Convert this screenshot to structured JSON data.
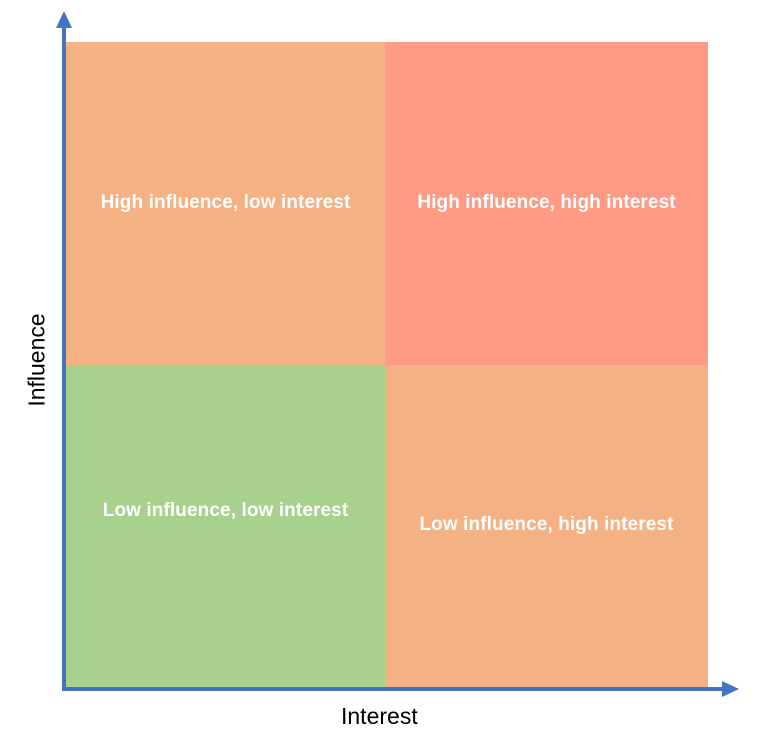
{
  "diagram": {
    "x_axis_label": "Interest",
    "y_axis_label": "Influence",
    "quadrants": {
      "top_left": {
        "label": "High influence, low interest",
        "color": "#f4b183"
      },
      "top_right": {
        "label": "High influence, high interest",
        "color": "#ff9a85"
      },
      "bottom_left": {
        "label": "Low influence, low interest",
        "color": "#a9d18e"
      },
      "bottom_right": {
        "label": "Low influence, high interest",
        "color": "#f4b183"
      }
    },
    "axis_color": "#4472c4"
  }
}
